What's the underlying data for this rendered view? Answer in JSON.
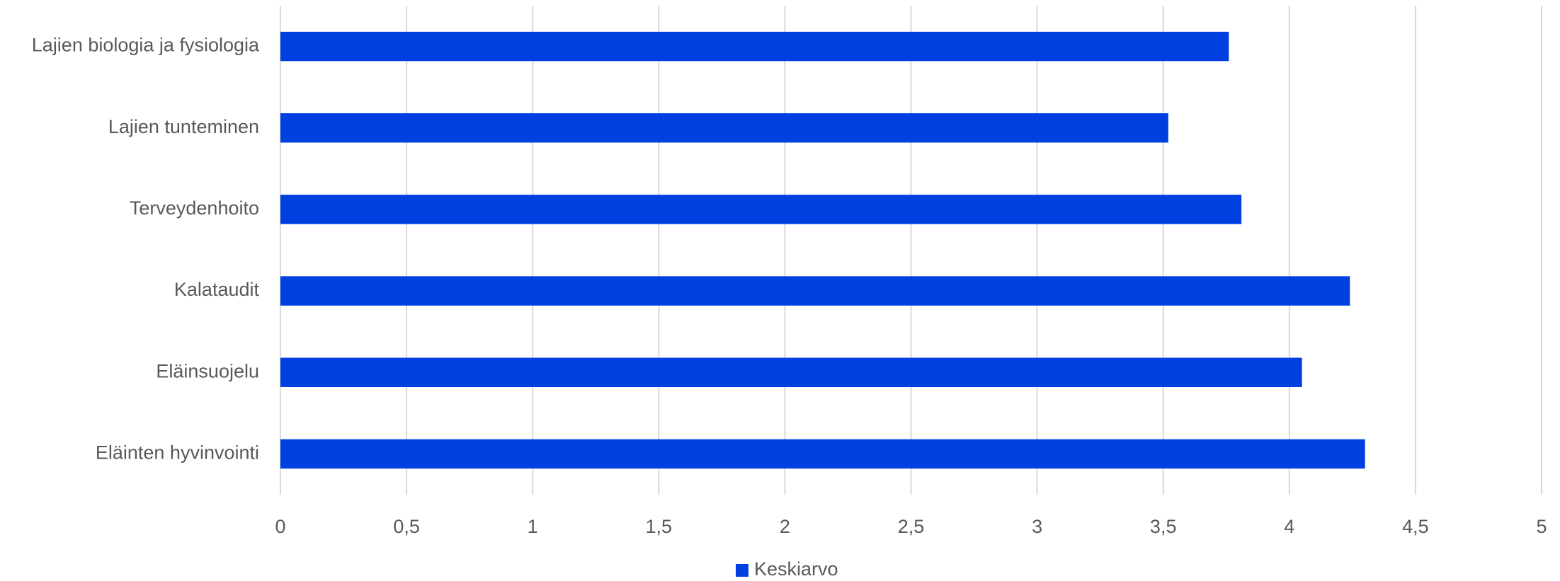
{
  "chart_data": {
    "type": "bar",
    "orientation": "horizontal",
    "categories": [
      "Lajien biologia ja fysiologia",
      "Lajien tunteminen",
      "Terveydenhoito",
      "Kalataudit",
      "Eläinsuojelu",
      "Eläinten hyvinvointi"
    ],
    "series": [
      {
        "name": "Keskiarvo",
        "values": [
          3.76,
          3.52,
          3.81,
          4.24,
          4.05,
          4.3
        ],
        "color": "#0040E0"
      }
    ],
    "xlim": [
      0,
      5
    ],
    "xticks": [
      0,
      0.5,
      1,
      1.5,
      2,
      2.5,
      3,
      3.5,
      4,
      4.5,
      5
    ],
    "xtick_labels": [
      "0",
      "0,5",
      "1",
      "1,5",
      "2",
      "2,5",
      "3",
      "3,5",
      "4",
      "4,5",
      "5"
    ],
    "grid": {
      "vertical": true,
      "color": "#D9D9D9"
    },
    "legend": {
      "position": "bottom",
      "entries": [
        "Keskiarvo"
      ]
    },
    "title": "",
    "xlabel": "",
    "ylabel": ""
  }
}
